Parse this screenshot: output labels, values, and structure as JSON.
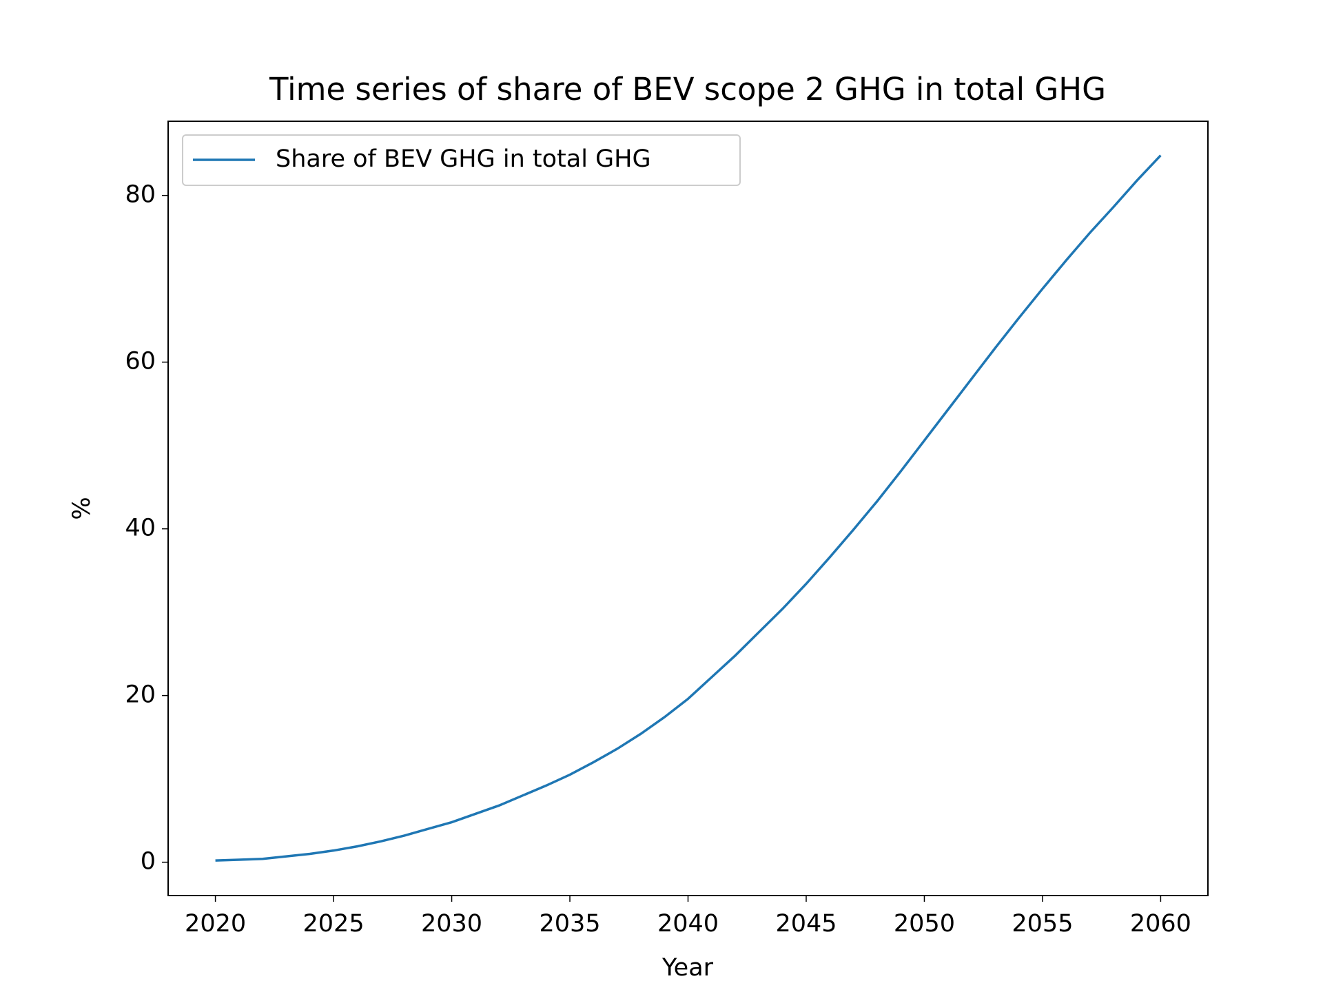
{
  "chart_data": {
    "type": "line",
    "title": "Time series of share of BEV scope 2 GHG in total GHG",
    "x_label": "Year",
    "y_label": "%",
    "x": [
      2020,
      2021,
      2022,
      2023,
      2024,
      2025,
      2026,
      2027,
      2028,
      2029,
      2030,
      2031,
      2032,
      2033,
      2034,
      2035,
      2036,
      2037,
      2038,
      2039,
      2040,
      2041,
      2042,
      2043,
      2044,
      2045,
      2046,
      2047,
      2048,
      2049,
      2050,
      2051,
      2052,
      2053,
      2054,
      2055,
      2056,
      2057,
      2058,
      2059,
      2060
    ],
    "series": [
      {
        "name": "Share of BEV GHG in total GHG",
        "color": "#1f77b4",
        "values": [
          0.2,
          0.3,
          0.4,
          0.7,
          1.0,
          1.4,
          1.9,
          2.5,
          3.2,
          4.0,
          4.8,
          5.8,
          6.8,
          8.0,
          9.2,
          10.5,
          12.0,
          13.6,
          15.4,
          17.4,
          19.6,
          22.2,
          24.8,
          27.6,
          30.4,
          33.4,
          36.6,
          39.9,
          43.3,
          46.9,
          50.6,
          54.3,
          58.0,
          61.7,
          65.3,
          68.8,
          72.2,
          75.5,
          78.6,
          81.8,
          84.8
        ]
      }
    ],
    "xlim": [
      2018,
      2062
    ],
    "xticks": [
      2020,
      2025,
      2030,
      2035,
      2040,
      2045,
      2050,
      2055,
      2060
    ],
    "ylim": [
      -4.0,
      88.9
    ],
    "yticks": [
      0,
      20,
      40,
      60,
      80
    ],
    "legend": "upper left"
  }
}
